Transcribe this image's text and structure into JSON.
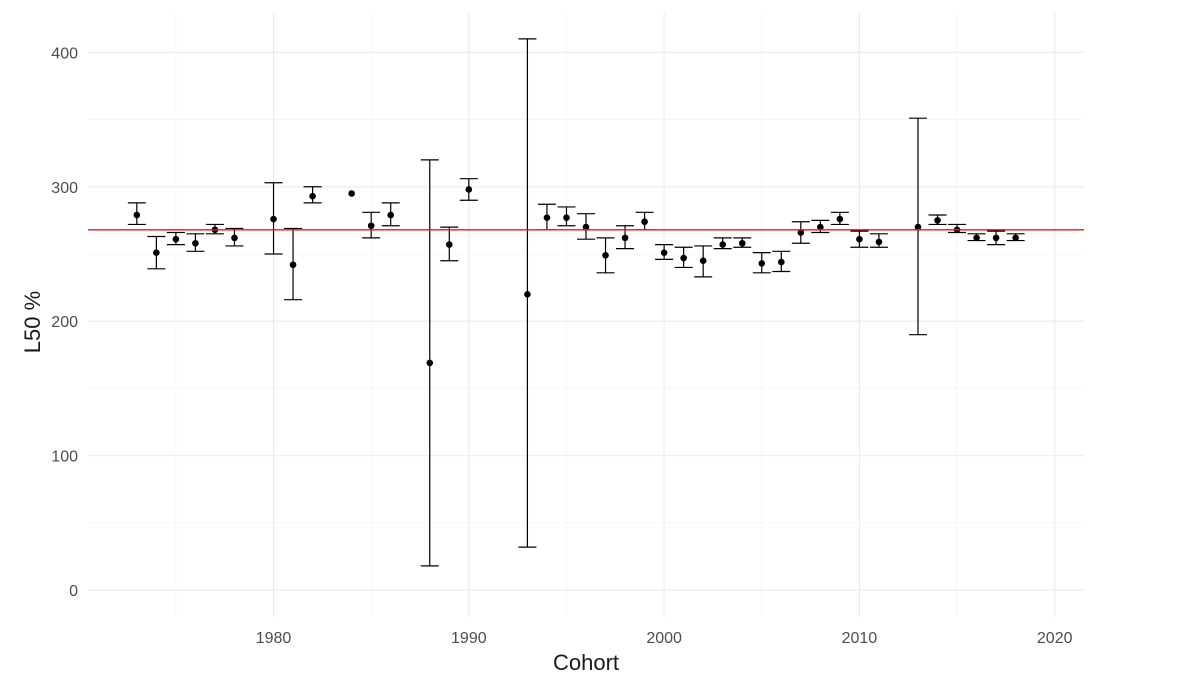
{
  "chart_data": {
    "type": "scatter",
    "title": "",
    "xlabel": "Cohort",
    "ylabel": "L50 %",
    "xlim": [
      1970.5,
      2021.5
    ],
    "ylim": [
      -20,
      430
    ],
    "x_ticks": [
      1980,
      1990,
      2000,
      2010,
      2020
    ],
    "y_ticks": [
      0,
      100,
      200,
      300,
      400
    ],
    "grid": true,
    "legend": "none",
    "colors": {
      "points": "#000000",
      "reference_line": "#e31a1c",
      "grid_major": "#ebebeb",
      "grid_minor": "#f4f4f4"
    },
    "reference_line": {
      "orientation": "horizontal",
      "y": 268
    },
    "points": [
      {
        "x": 1973,
        "y": 279,
        "lower": 272,
        "upper": 288
      },
      {
        "x": 1974,
        "y": 251,
        "lower": 239,
        "upper": 263
      },
      {
        "x": 1975,
        "y": 261,
        "lower": 257,
        "upper": 266
      },
      {
        "x": 1976,
        "y": 258,
        "lower": 252,
        "upper": 265
      },
      {
        "x": 1977,
        "y": 268,
        "lower": 265,
        "upper": 272
      },
      {
        "x": 1978,
        "y": 262,
        "lower": 256,
        "upper": 269
      },
      {
        "x": 1980,
        "y": 276,
        "lower": 250,
        "upper": 303
      },
      {
        "x": 1981,
        "y": 242,
        "lower": 216,
        "upper": 269
      },
      {
        "x": 1982,
        "y": 293,
        "lower": 288,
        "upper": 300
      },
      {
        "x": 1984,
        "y": 295,
        "lower": null,
        "upper": null
      },
      {
        "x": 1985,
        "y": 271,
        "lower": 262,
        "upper": 281
      },
      {
        "x": 1986,
        "y": 279,
        "lower": 271,
        "upper": 288
      },
      {
        "x": 1988,
        "y": 169,
        "lower": 18,
        "upper": 320
      },
      {
        "x": 1989,
        "y": 257,
        "lower": 245,
        "upper": 270
      },
      {
        "x": 1990,
        "y": 298,
        "lower": 290,
        "upper": 306
      },
      {
        "x": 1993,
        "y": 220,
        "lower": 32,
        "upper": 410
      },
      {
        "x": 1994,
        "y": 277,
        "lower": 268,
        "upper": 287
      },
      {
        "x": 1995,
        "y": 277,
        "lower": 271,
        "upper": 285
      },
      {
        "x": 1996,
        "y": 270,
        "lower": 261,
        "upper": 280
      },
      {
        "x": 1997,
        "y": 249,
        "lower": 236,
        "upper": 262
      },
      {
        "x": 1998,
        "y": 262,
        "lower": 254,
        "upper": 271
      },
      {
        "x": 1999,
        "y": 274,
        "lower": 268,
        "upper": 281
      },
      {
        "x": 2000,
        "y": 251,
        "lower": 246,
        "upper": 257
      },
      {
        "x": 2001,
        "y": 247,
        "lower": 240,
        "upper": 255
      },
      {
        "x": 2002,
        "y": 245,
        "lower": 233,
        "upper": 256
      },
      {
        "x": 2003,
        "y": 257,
        "lower": 254,
        "upper": 262
      },
      {
        "x": 2004,
        "y": 258,
        "lower": 255,
        "upper": 262
      },
      {
        "x": 2005,
        "y": 243,
        "lower": 236,
        "upper": 251
      },
      {
        "x": 2006,
        "y": 244,
        "lower": 237,
        "upper": 252
      },
      {
        "x": 2007,
        "y": 266,
        "lower": 258,
        "upper": 274
      },
      {
        "x": 2008,
        "y": 270,
        "lower": 266,
        "upper": 275
      },
      {
        "x": 2009,
        "y": 276,
        "lower": 272,
        "upper": 281
      },
      {
        "x": 2010,
        "y": 261,
        "lower": 255,
        "upper": 267
      },
      {
        "x": 2011,
        "y": 259,
        "lower": 255,
        "upper": 265
      },
      {
        "x": 2013,
        "y": 270,
        "lower": 190,
        "upper": 351
      },
      {
        "x": 2014,
        "y": 275,
        "lower": 272,
        "upper": 279
      },
      {
        "x": 2015,
        "y": 268,
        "lower": 266,
        "upper": 272
      },
      {
        "x": 2016,
        "y": 262,
        "lower": 260,
        "upper": 265
      },
      {
        "x": 2017,
        "y": 262,
        "lower": 257,
        "upper": 267
      },
      {
        "x": 2018,
        "y": 262,
        "lower": 260,
        "upper": 265
      }
    ]
  }
}
